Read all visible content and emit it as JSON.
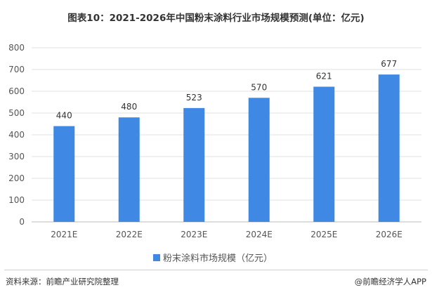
{
  "title": "图表10：2021-2026年中国粉末涂料行业市场规模预测(单位：亿元)",
  "footer": {
    "source": "资料来源：前瞻产业研究院整理",
    "brand": "@前瞻经济学人APP"
  },
  "colors": {
    "bar": "#3f88e3",
    "grid": "#e0e0e0",
    "axis": "#bbbbbb"
  },
  "chart_data": {
    "type": "bar",
    "title": "图表10：2021-2026年中国粉末涂料行业市场规模预测(单位：亿元)",
    "categories": [
      "2021E",
      "2022E",
      "2023E",
      "2024E",
      "2025E",
      "2026E"
    ],
    "series": [
      {
        "name": "粉末涂料市场规模（亿元）",
        "values": [
          440,
          480,
          523,
          570,
          621,
          677
        ]
      }
    ],
    "yticks": [
      0,
      100,
      200,
      300,
      400,
      500,
      600,
      700,
      800
    ],
    "ylim": [
      0,
      800
    ],
    "grid": true,
    "legend": "bottom"
  }
}
